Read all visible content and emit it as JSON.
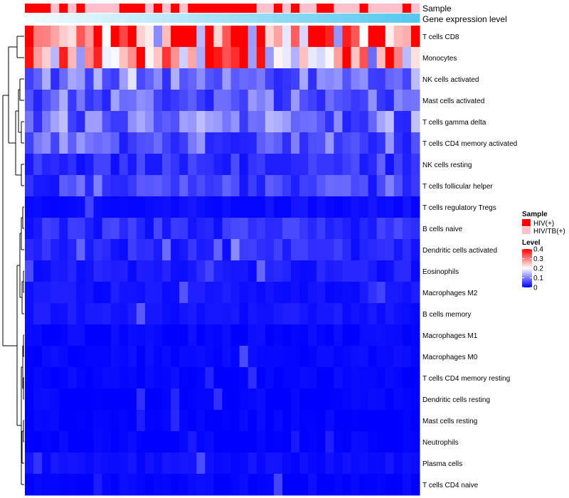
{
  "chart_data": {
    "type": "heatmap",
    "annotations": {
      "sample_label": "Sample",
      "expression_label": "Gene expression level",
      "sample_groups": [
        "HIV(+)",
        "HIV/TB(+)"
      ],
      "sample_colors": [
        "#ff0000",
        "#ffc0cb"
      ],
      "expression_gradient": [
        "#f2fbfe",
        "#56c8f0"
      ]
    },
    "rows": [
      "T cells CD8",
      "Monocytes",
      "NK cells activated",
      "Mast cells activated",
      "T cells gamma delta",
      "T cells CD4 memory activated",
      "NK cells resting",
      "T cells follicular helper",
      "T cells regulatory  Tregs",
      "B cells naive",
      "Dendritic cells activated",
      "Eosinophils",
      "Macrophages M2",
      "B cells memory",
      "Macrophages M1",
      "Macrophages M0",
      "T cells CD4 memory resting",
      "Dendritic cells resting",
      "Mast cells resting",
      "Neutrophils",
      "Plasma cells",
      "T cells CD4 naive"
    ],
    "n_columns": 46,
    "sample_sequence": [
      0,
      0,
      0,
      1,
      0,
      1,
      0,
      1,
      1,
      1,
      1,
      0,
      0,
      0,
      1,
      0,
      1,
      0,
      1,
      0,
      0,
      0,
      0,
      0,
      0,
      0,
      0,
      1,
      1,
      0,
      1,
      0,
      1,
      1,
      0,
      0,
      1,
      1,
      1,
      0,
      1,
      1,
      1,
      1,
      0,
      1
    ],
    "mean_level": [
      0.36,
      0.25,
      0.09,
      0.075,
      0.09,
      0.07,
      0.035,
      0.05,
      0.01,
      0.035,
      0.03,
      0.02,
      0.015,
      0.015,
      0.005,
      0.005,
      0.003,
      0.003,
      0.001,
      0.001,
      0.01,
      0.003
    ],
    "legend": {
      "sample_title": "Sample",
      "sample_items": [
        "HIV(+)",
        "HIV/TB(+)"
      ],
      "level_title": "Level",
      "ticks": [
        "0.4",
        "0.3",
        "0.2",
        "0.1",
        "0"
      ],
      "tick_values": [
        0.4,
        0.3,
        0.2,
        0.1,
        0
      ],
      "range": [
        0,
        0.4
      ],
      "colors": [
        "#0000ff",
        "#ffffff",
        "#ff0000"
      ]
    }
  }
}
